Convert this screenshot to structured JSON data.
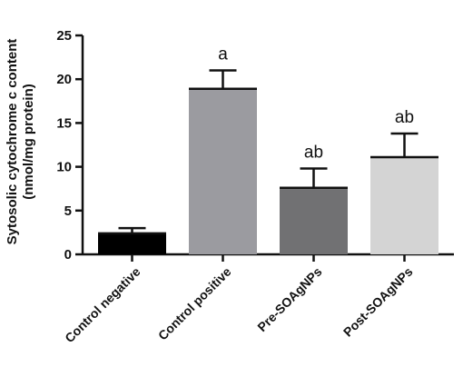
{
  "chart_data": {
    "type": "bar",
    "categories": [
      "Control negative",
      "Control positive",
      "Pre-SOAgNPs",
      "Post-SOAgNPs"
    ],
    "values": [
      2.4,
      18.9,
      7.6,
      11.1
    ],
    "errors": [
      0.6,
      2.1,
      2.2,
      2.7
    ],
    "annotations": [
      "",
      "a",
      "ab",
      "ab"
    ],
    "bar_colors": [
      "#000000",
      "#9b9ba0",
      "#717173",
      "#d4d4d4"
    ],
    "ylabel_line1": "Sytosolic cytochrome c content",
    "ylabel_line2": "(nmol/mg protein)",
    "ylim": [
      0,
      25
    ],
    "yticks": [
      "0",
      "5",
      "10",
      "15",
      "20",
      "25"
    ],
    "title": "",
    "xlabel": "",
    "grid": false
  }
}
